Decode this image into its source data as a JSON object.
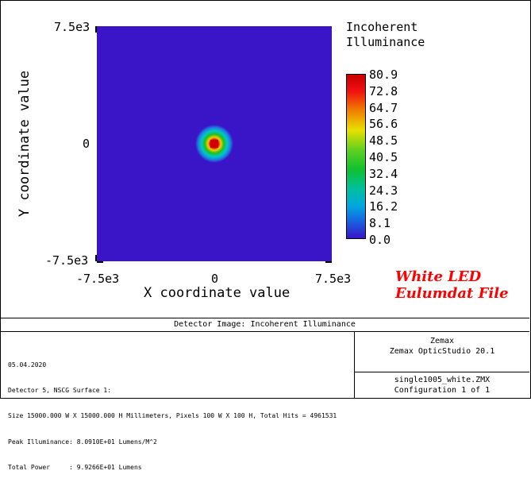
{
  "chart_data": {
    "type": "heatmap",
    "title": "Incoherent Illuminance",
    "xlabel": "X coordinate value",
    "ylabel": "Y coordinate value",
    "xlim": [
      -7500,
      7500
    ],
    "ylim": [
      -7500,
      7500
    ],
    "x_ticks": [
      "-7.5e3",
      "0",
      "7.5e3"
    ],
    "y_ticks": [
      "7.5e3",
      "0",
      "-7.5e3"
    ],
    "colorbar_ticks": [
      "80.9",
      "72.8",
      "64.7",
      "56.6",
      "48.5",
      "40.5",
      "32.4",
      "24.3",
      "16.2",
      "8.1",
      "0.0"
    ],
    "colorbar_range": [
      0.0,
      80.9
    ],
    "colormap": "false-color (blue-cyan-green-yellow-red)",
    "peak": {
      "x": 0,
      "y": 0,
      "value": 80.9
    },
    "background_value": 0.0,
    "grid": false,
    "legend": "colorbar right"
  },
  "colors": {
    "background_blue": "#3a14c7",
    "annotation_red": "#ff0000"
  },
  "annotation": {
    "line1": "White LED",
    "line2": "Eulumdat File"
  },
  "panel": {
    "title": "Detector Image: Incoherent Illuminance",
    "left_lines": [
      "05.04.2020",
      "Detector 5, NSCG Surface 1:",
      "Size 15000.000 W X 15000.000 H Millimeters, Pixels 100 W X 100 H, Total Hits = 4961531",
      "Peak Illuminance: 8.0910E+01 Lumens/M^2",
      "Total Power     : 9.9266E+01 Lumens"
    ],
    "company": "Zemax",
    "product": "Zemax OpticStudio 20.1",
    "file": "single1005_white.ZMX",
    "config": "Configuration 1 of 1"
  }
}
